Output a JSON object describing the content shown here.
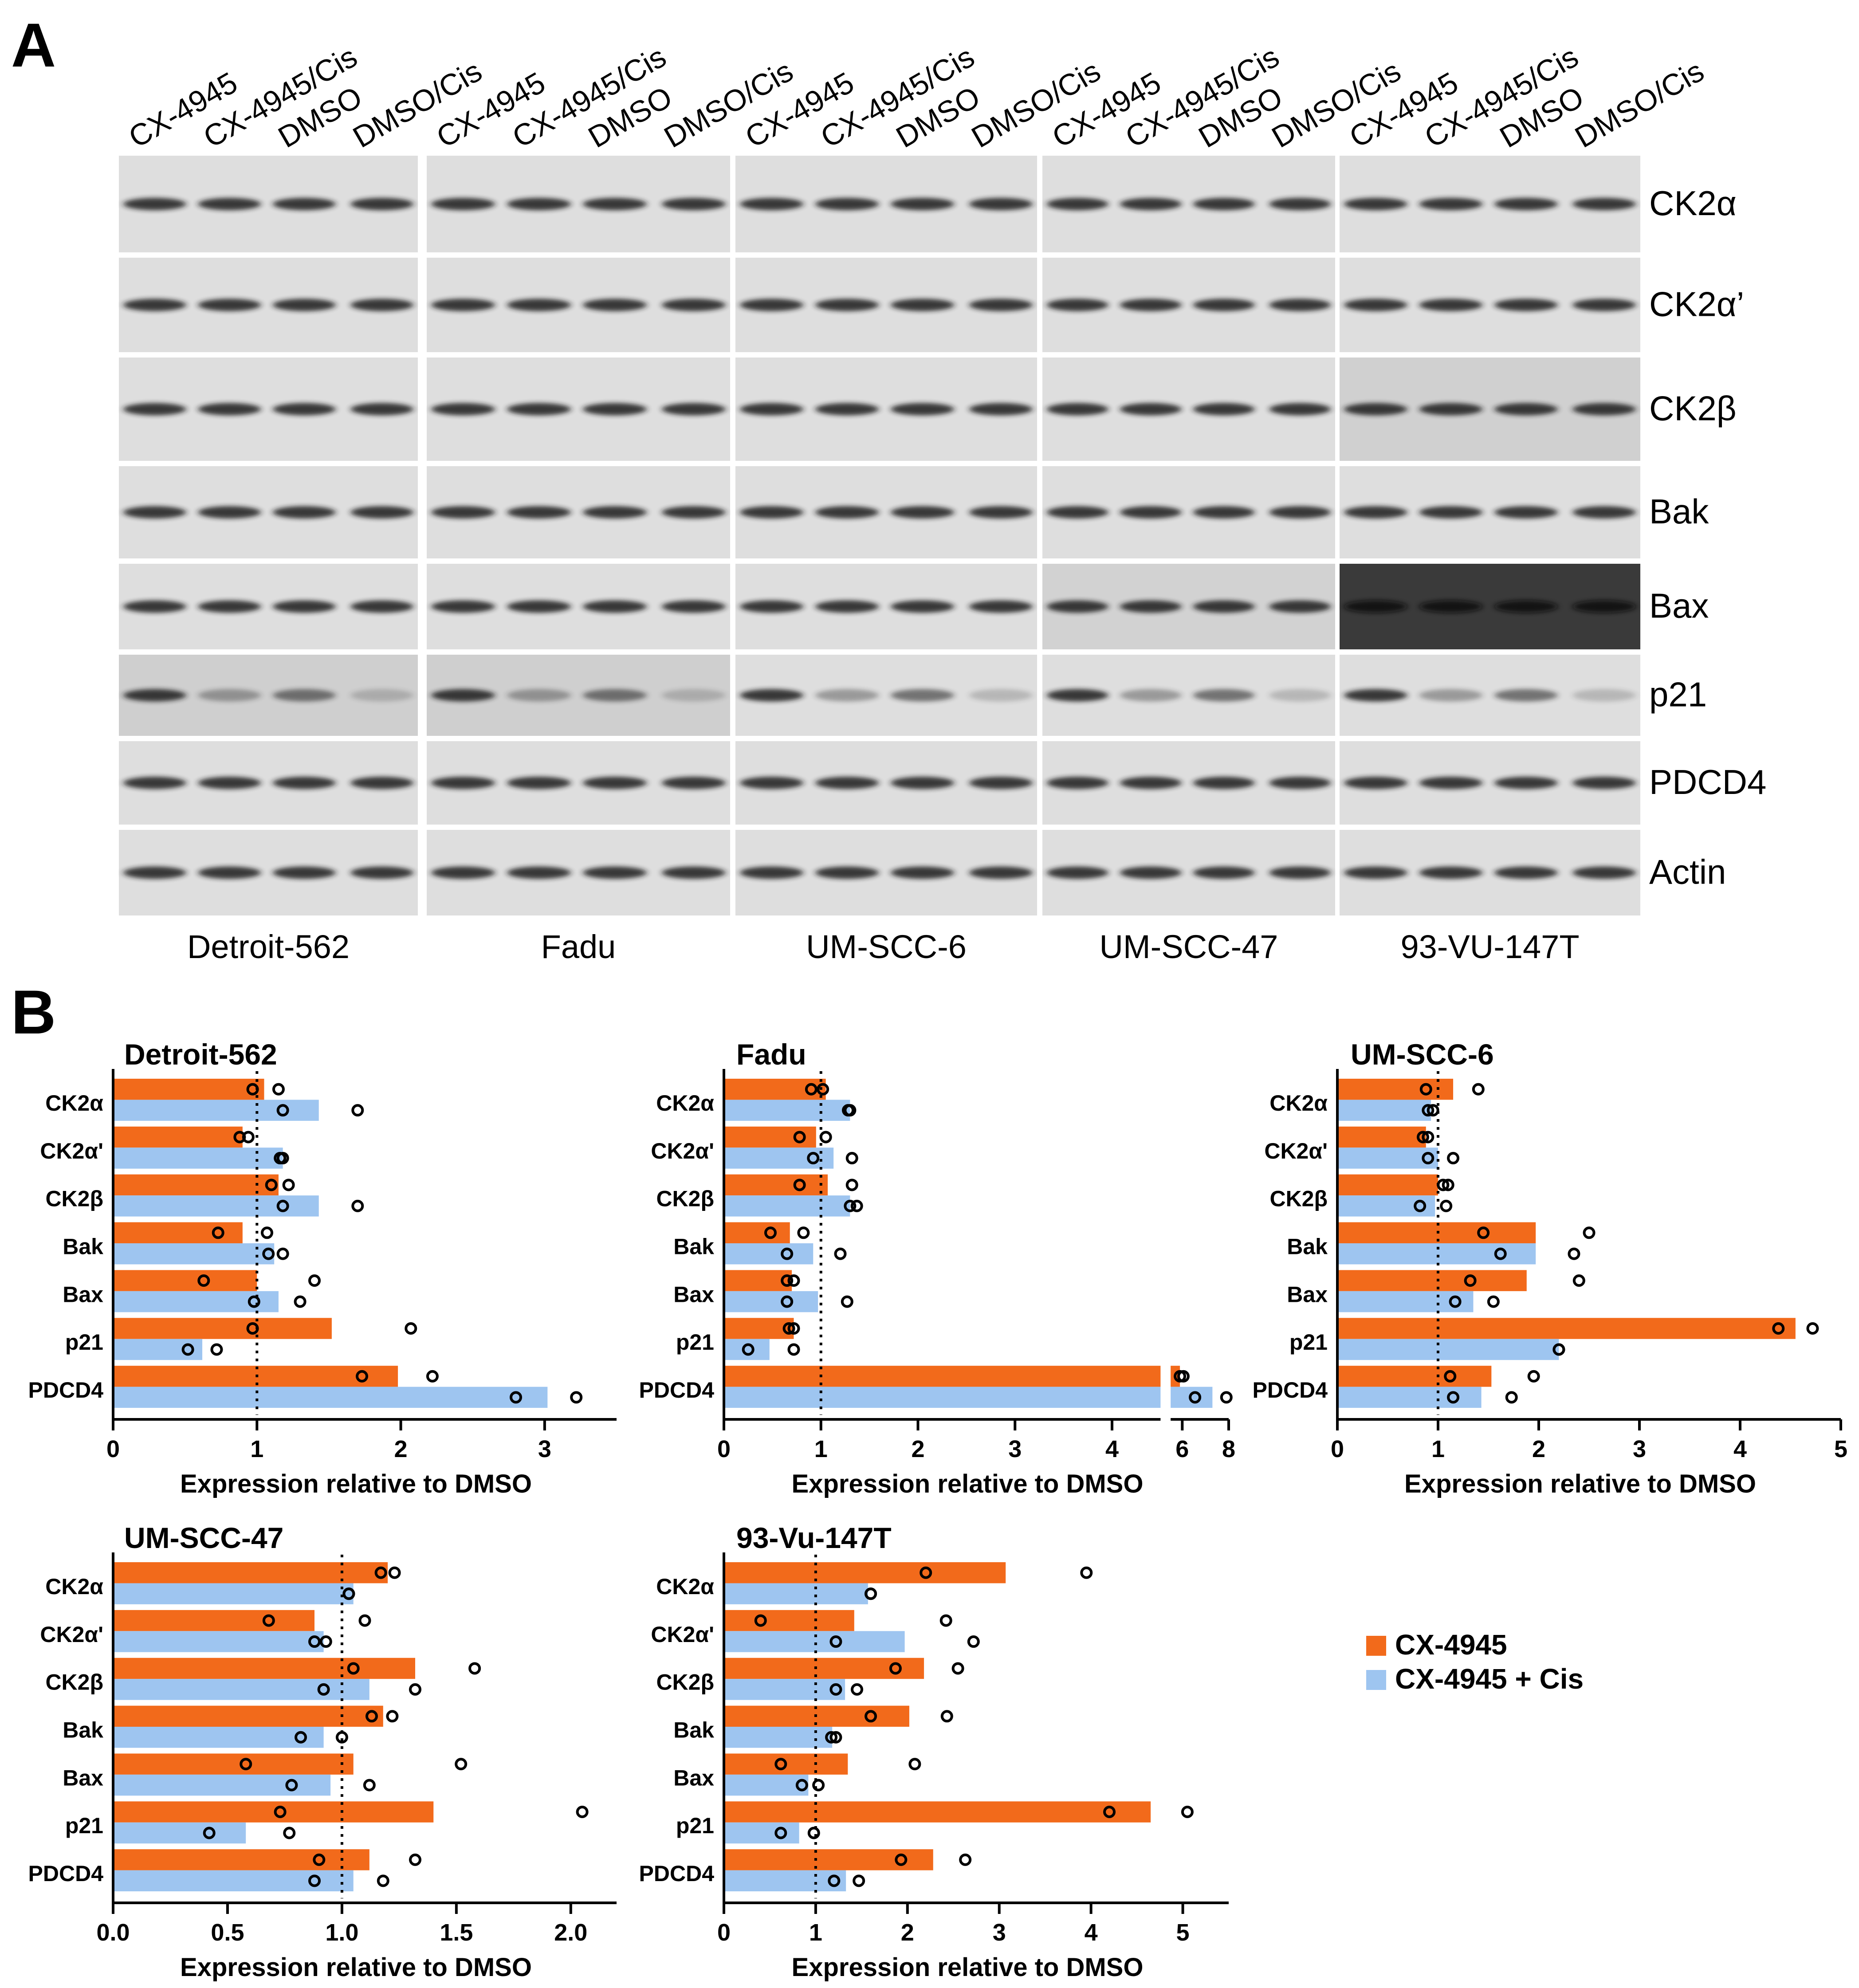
{
  "figure": {
    "panel_a_letter": "A",
    "panel_b_letter": "B",
    "lane_labels": [
      "CX-4945",
      "CX-4945/Cis",
      "DMSO",
      "DMSO/Cis"
    ],
    "proteins": [
      "CK2α",
      "CK2α’",
      "CK2β",
      "Bak",
      "Bax",
      "p21",
      "PDCD4",
      "Actin"
    ],
    "cell_lines": [
      "Detroit-562",
      "Fadu",
      "UM-SCC-6",
      "UM-SCC-47",
      "93-VU-147T"
    ]
  },
  "legend": {
    "items": [
      {
        "label": "CX-4945",
        "color": "#f26a1b"
      },
      {
        "label": "CX-4945 + Cis",
        "color": "#9ec5f0"
      }
    ]
  },
  "colors": {
    "orange": "#f26a1b",
    "blue": "#9ec5f0",
    "blot_background": "#dcdcdc",
    "band": "#1a1a1a"
  },
  "chart_data": [
    {
      "type": "bar",
      "title": "Detroit-562",
      "categories": [
        "CK2α",
        "CK2α'",
        "CK2β",
        "Bak",
        "Bax",
        "p21",
        "PDCD4"
      ],
      "xlabel": "Expression relative to DMSO",
      "xlim": [
        0,
        3.5
      ],
      "xticks": [
        0,
        1,
        2,
        3
      ],
      "xtick_labels": [
        "0",
        "1",
        "2",
        "3"
      ],
      "reference_line": 1,
      "series": [
        {
          "name": "CX-4945",
          "values": [
            1.05,
            0.9,
            1.15,
            0.9,
            1.0,
            1.52,
            1.98
          ],
          "points": [
            [
              0.97,
              1.15
            ],
            [
              0.94,
              0.88
            ],
            [
              1.1,
              1.22
            ],
            [
              0.73,
              1.07
            ],
            [
              0.63,
              1.4
            ],
            [
              0.97,
              2.07
            ],
            [
              1.73,
              2.22
            ]
          ]
        },
        {
          "name": "CX-4945 + Cis",
          "values": [
            1.43,
            1.18,
            1.43,
            1.12,
            1.15,
            0.62,
            3.02
          ],
          "points": [
            [
              1.18,
              1.7
            ],
            [
              1.18,
              1.16
            ],
            [
              1.18,
              1.7
            ],
            [
              1.08,
              1.18
            ],
            [
              0.98,
              1.3
            ],
            [
              0.52,
              0.72
            ],
            [
              2.8,
              3.22
            ]
          ]
        }
      ]
    },
    {
      "type": "bar",
      "title": "Fadu",
      "categories": [
        "CK2α",
        "CK2α'",
        "CK2β",
        "Bak",
        "Bax",
        "p21",
        "PDCD4"
      ],
      "xlabel": "Expression relative to DMSO",
      "xlim": [
        0,
        8
      ],
      "axis_break": [
        4.5,
        5.5
      ],
      "xticks": [
        0,
        1,
        2,
        3,
        4,
        6,
        8
      ],
      "xtick_labels": [
        "0",
        "1",
        "2",
        "3",
        "4",
        "6",
        "8"
      ],
      "reference_line": 1,
      "series": [
        {
          "name": "CX-4945",
          "values": [
            1.05,
            0.95,
            1.07,
            0.68,
            0.7,
            0.72,
            5.9
          ],
          "points": [
            [
              0.9,
              1.02
            ],
            [
              0.78,
              1.05
            ],
            [
              0.78,
              1.32
            ],
            [
              0.48,
              0.82
            ],
            [
              0.65,
              0.72
            ],
            [
              0.67,
              0.72
            ],
            [
              5.9,
              6.05
            ]
          ]
        },
        {
          "name": "CX-4945 + Cis",
          "values": [
            1.3,
            1.13,
            1.3,
            0.92,
            0.97,
            0.47,
            7.3
          ],
          "points": [
            [
              1.28,
              1.3
            ],
            [
              0.92,
              1.32
            ],
            [
              1.3,
              1.37
            ],
            [
              0.65,
              1.2
            ],
            [
              0.65,
              1.27
            ],
            [
              0.25,
              0.72
            ],
            [
              6.55,
              7.9
            ]
          ]
        }
      ]
    },
    {
      "type": "bar",
      "title": "UM-SCC-6",
      "categories": [
        "CK2α",
        "CK2α'",
        "CK2β",
        "Bak",
        "Bax",
        "p21",
        "PDCD4"
      ],
      "xlabel": "Expression relative to DMSO",
      "xlim": [
        0,
        5
      ],
      "xticks": [
        0,
        1,
        2,
        3,
        4,
        5
      ],
      "xtick_labels": [
        "0",
        "1",
        "2",
        "3",
        "4",
        "5"
      ],
      "reference_line": 1,
      "series": [
        {
          "name": "CX-4945",
          "values": [
            1.15,
            0.88,
            1.0,
            1.97,
            1.88,
            4.55,
            1.53
          ],
          "points": [
            [
              0.88,
              1.4
            ],
            [
              0.85,
              0.9
            ],
            [
              1.05,
              1.1
            ],
            [
              1.45,
              2.5
            ],
            [
              1.32,
              2.4
            ],
            [
              4.38,
              4.72
            ],
            [
              1.12,
              1.95
            ]
          ]
        },
        {
          "name": "CX-4945 + Cis",
          "values": [
            0.93,
            1.0,
            0.97,
            1.97,
            1.35,
            2.2,
            1.43
          ],
          "points": [
            [
              0.9,
              0.95
            ],
            [
              0.9,
              1.15
            ],
            [
              0.82,
              1.08
            ],
            [
              1.62,
              2.35
            ],
            [
              1.17,
              1.55
            ],
            [
              2.2,
              2.2
            ],
            [
              1.15,
              1.73
            ]
          ]
        }
      ]
    },
    {
      "type": "bar",
      "title": "UM-SCC-47",
      "categories": [
        "CK2α",
        "CK2α'",
        "CK2β",
        "Bak",
        "Bax",
        "p21",
        "PDCD4"
      ],
      "xlabel": "Expression relative to DMSO",
      "xlim": [
        0,
        2.2
      ],
      "xticks": [
        0,
        0.5,
        1.0,
        1.5,
        2.0
      ],
      "xtick_labels": [
        "0.0",
        "0.5",
        "1.0",
        "1.5",
        "2.0"
      ],
      "reference_line": 1,
      "series": [
        {
          "name": "CX-4945",
          "values": [
            1.2,
            0.88,
            1.32,
            1.18,
            1.05,
            1.4,
            1.12
          ],
          "points": [
            [
              1.17,
              1.23
            ],
            [
              0.68,
              1.1
            ],
            [
              1.05,
              1.58
            ],
            [
              1.13,
              1.22
            ],
            [
              0.58,
              1.52
            ],
            [
              0.73,
              2.05
            ],
            [
              0.9,
              1.32
            ]
          ]
        },
        {
          "name": "CX-4945 + Cis",
          "values": [
            1.05,
            0.92,
            1.12,
            0.92,
            0.95,
            0.58,
            1.05
          ],
          "points": [
            [
              1.03,
              1.03
            ],
            [
              0.88,
              0.93
            ],
            [
              0.92,
              1.32
            ],
            [
              0.82,
              1.0
            ],
            [
              0.78,
              1.12
            ],
            [
              0.42,
              0.77
            ],
            [
              0.88,
              1.18
            ]
          ]
        }
      ]
    },
    {
      "type": "bar",
      "title": "93-Vu-147T",
      "categories": [
        "CK2α",
        "CK2α'",
        "CK2β",
        "Bak",
        "Bax",
        "p21",
        "PDCD4"
      ],
      "xlabel": "Expression relative to DMSO",
      "xlim": [
        0,
        5.5
      ],
      "xticks": [
        0,
        1,
        2,
        3,
        4,
        5
      ],
      "xtick_labels": [
        "0",
        "1",
        "2",
        "3",
        "4",
        "5"
      ],
      "reference_line": 1,
      "series": [
        {
          "name": "CX-4945",
          "values": [
            3.07,
            1.42,
            2.18,
            2.02,
            1.35,
            4.65,
            2.28
          ],
          "points": [
            [
              2.2,
              3.95
            ],
            [
              0.4,
              2.42
            ],
            [
              1.87,
              2.55
            ],
            [
              1.6,
              2.43
            ],
            [
              0.62,
              2.08
            ],
            [
              4.2,
              5.05
            ],
            [
              1.93,
              2.63
            ]
          ]
        },
        {
          "name": "CX-4945 + Cis",
          "values": [
            1.57,
            1.97,
            1.32,
            1.18,
            0.92,
            0.82,
            1.33
          ],
          "points": [
            [
              1.6,
              1.6
            ],
            [
              1.22,
              2.72
            ],
            [
              1.22,
              1.45
            ],
            [
              1.17,
              1.22
            ],
            [
              0.85,
              1.03
            ],
            [
              0.62,
              0.98
            ],
            [
              1.2,
              1.47
            ]
          ]
        }
      ]
    }
  ]
}
